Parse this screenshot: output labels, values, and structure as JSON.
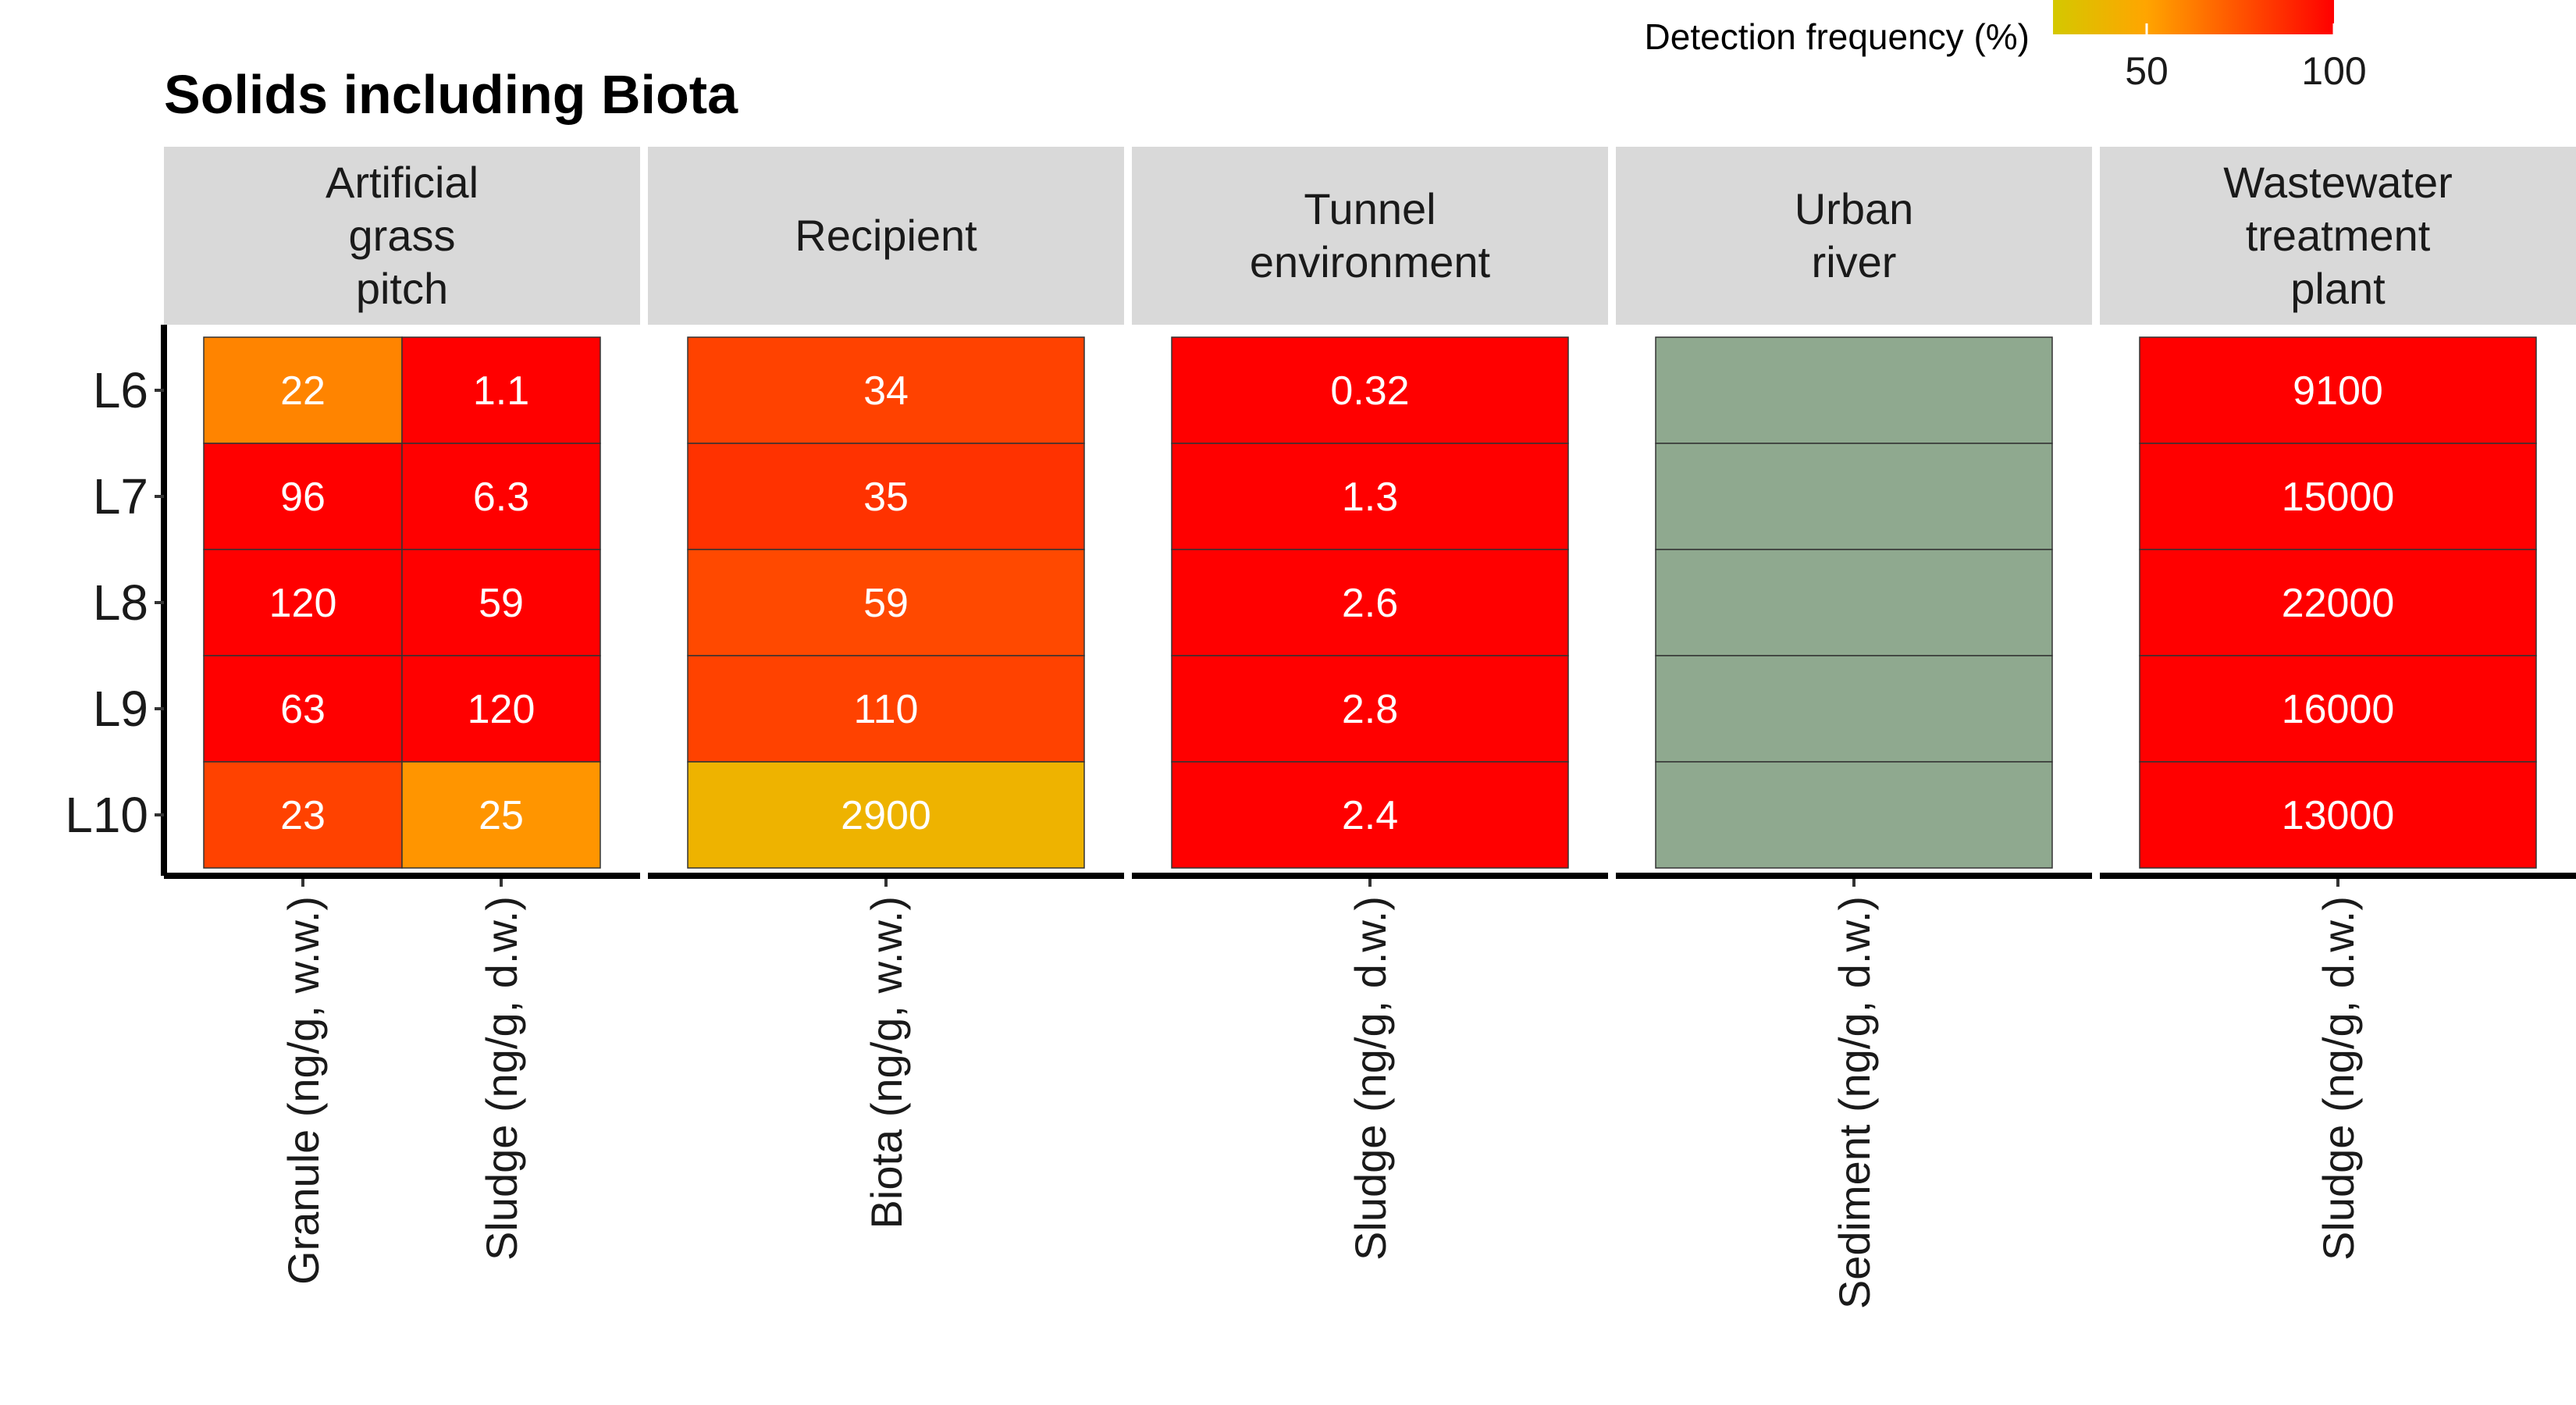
{
  "chart_data": {
    "type": "heatmap",
    "title": "Solids including Biota",
    "rows": [
      "L6",
      "L7",
      "L8",
      "L9",
      "L10"
    ],
    "legend": {
      "title": "Detection frequency (%)",
      "ticks": [
        50,
        100
      ],
      "range": [
        25,
        100
      ],
      "colors": [
        "#d4c800",
        "#ffa500",
        "#ff0000"
      ],
      "na_color": "#8fa98f"
    },
    "facets": [
      {
        "label": [
          "Artificial",
          "grass",
          "pitch"
        ],
        "columns": [
          {
            "label": "Granule (ng/g, w.w.)",
            "cells": [
              {
                "text": "22",
                "detection": 60
              },
              {
                "text": "96",
                "detection": 100
              },
              {
                "text": "120",
                "detection": 100
              },
              {
                "text": "63",
                "detection": 100
              },
              {
                "text": "23",
                "detection": 80
              }
            ]
          },
          {
            "label": "Sludge (ng/g, d.w.)",
            "cells": [
              {
                "text": "1.1",
                "detection": 100
              },
              {
                "text": "6.3",
                "detection": 100
              },
              {
                "text": "59",
                "detection": 100
              },
              {
                "text": "120",
                "detection": 100
              },
              {
                "text": "25",
                "detection": 55
              }
            ]
          }
        ]
      },
      {
        "label": [
          "Recipient"
        ],
        "columns": [
          {
            "label": "Biota (ng/g, w.w.)",
            "cells": [
              {
                "text": "34",
                "detection": 80
              },
              {
                "text": "35",
                "detection": 85
              },
              {
                "text": "59",
                "detection": 78
              },
              {
                "text": "110",
                "detection": 80
              },
              {
                "text": "2900",
                "detection": 40
              }
            ]
          }
        ]
      },
      {
        "label": [
          "Tunnel",
          "environment"
        ],
        "columns": [
          {
            "label": "Sludge (ng/g, d.w.)",
            "cells": [
              {
                "text": "0.32",
                "detection": 100
              },
              {
                "text": "1.3",
                "detection": 100
              },
              {
                "text": "2.6",
                "detection": 100
              },
              {
                "text": "2.8",
                "detection": 100
              },
              {
                "text": "2.4",
                "detection": 100
              }
            ]
          }
        ]
      },
      {
        "label": [
          "Urban",
          "river"
        ],
        "columns": [
          {
            "label": "Sediment (ng/g, d.w.)",
            "cells": [
              {
                "text": "",
                "detection": null
              },
              {
                "text": "",
                "detection": null
              },
              {
                "text": "",
                "detection": null
              },
              {
                "text": "",
                "detection": null
              },
              {
                "text": "",
                "detection": null
              }
            ]
          }
        ]
      },
      {
        "label": [
          "Wastewater",
          "treatment",
          "plant"
        ],
        "columns": [
          {
            "label": "Sludge (ng/g, d.w.)",
            "cells": [
              {
                "text": "9100",
                "detection": 100
              },
              {
                "text": "15000",
                "detection": 100
              },
              {
                "text": "22000",
                "detection": 100
              },
              {
                "text": "16000",
                "detection": 100
              },
              {
                "text": "13000",
                "detection": 100
              }
            ]
          }
        ]
      }
    ]
  }
}
